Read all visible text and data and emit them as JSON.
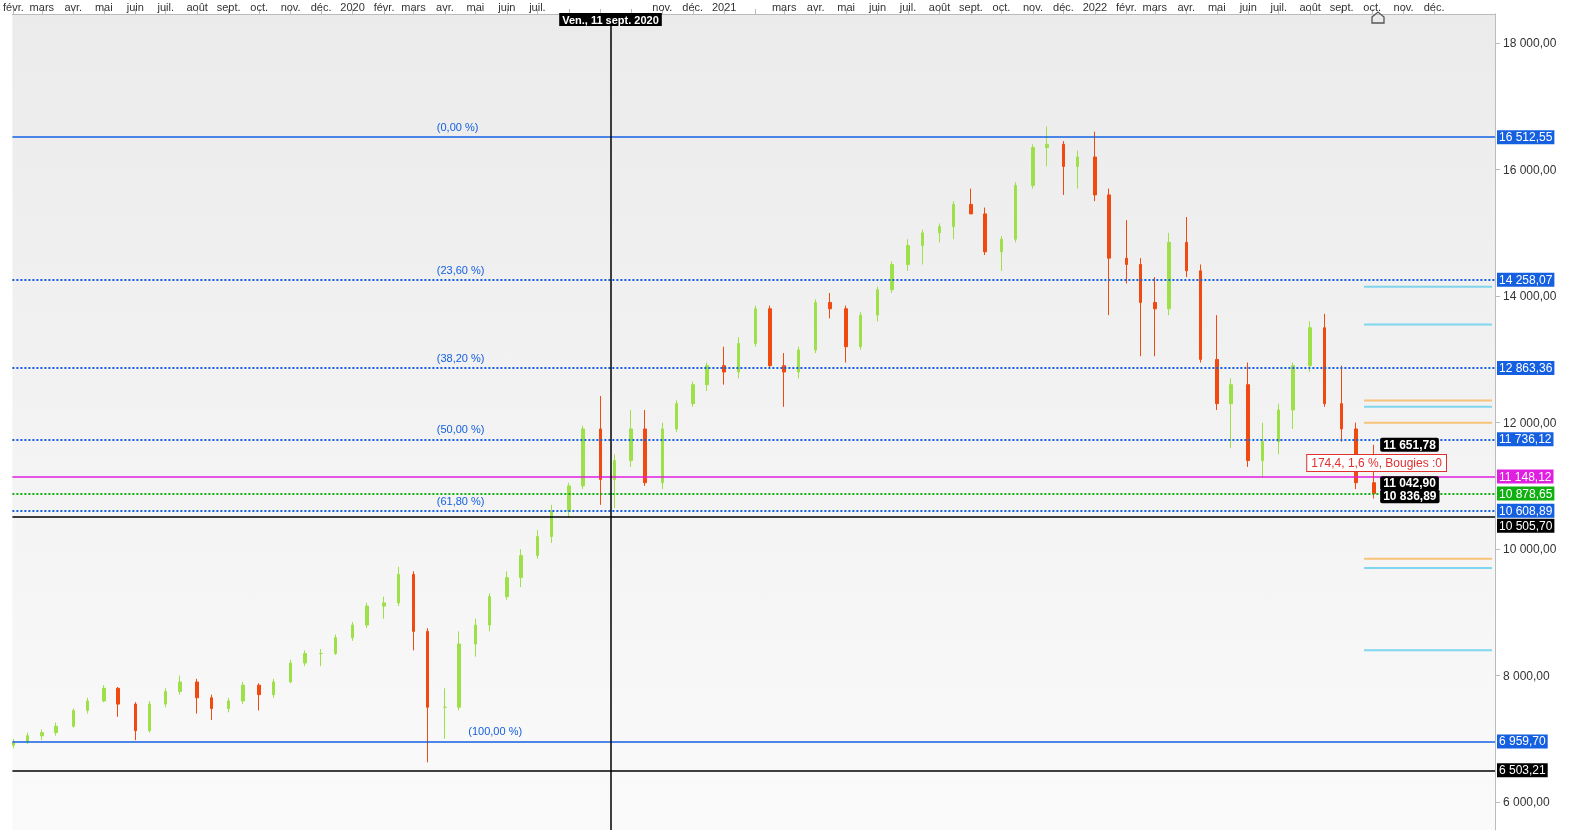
{
  "chart_data": {
    "type": "candlestick",
    "x": [
      "2019-02-01",
      "2019-02-15",
      "2019-03-01",
      "2019-03-15",
      "2019-04-01",
      "2019-04-15",
      "2019-05-01",
      "2019-05-15",
      "2019-06-01",
      "2019-06-15",
      "2019-07-01",
      "2019-07-15",
      "2019-08-01",
      "2019-08-15",
      "2019-09-01",
      "2019-09-15",
      "2019-10-01",
      "2019-10-15",
      "2019-11-01",
      "2019-11-15",
      "2019-12-01",
      "2019-12-15",
      "2020-01-01",
      "2020-01-15",
      "2020-02-01",
      "2020-02-15",
      "2020-03-01",
      "2020-03-15",
      "2020-04-01",
      "2020-04-15",
      "2020-05-01",
      "2020-05-15",
      "2020-06-01",
      "2020-06-15",
      "2020-07-01",
      "2020-07-15",
      "2020-08-01",
      "2020-08-15",
      "2020-09-01",
      "2020-09-15",
      "2020-10-01",
      "2020-10-15",
      "2020-11-01",
      "2020-11-15",
      "2020-12-01",
      "2020-12-15",
      "2021-01-01",
      "2021-01-15",
      "2021-02-01",
      "2021-02-15",
      "2021-03-01",
      "2021-03-15",
      "2021-04-01",
      "2021-04-15",
      "2021-05-01",
      "2021-05-15",
      "2021-06-01",
      "2021-06-15",
      "2021-07-01",
      "2021-07-15",
      "2021-08-01",
      "2021-08-15",
      "2021-09-01",
      "2021-09-15",
      "2021-10-01",
      "2021-10-15",
      "2021-11-01",
      "2021-11-15",
      "2021-12-01",
      "2021-12-15",
      "2022-01-01",
      "2022-01-15",
      "2022-02-01",
      "2022-02-15",
      "2022-03-01",
      "2022-03-15",
      "2022-04-01",
      "2022-04-15",
      "2022-05-01",
      "2022-05-15",
      "2022-06-01",
      "2022-06-15",
      "2022-07-01",
      "2022-07-15",
      "2022-08-01",
      "2022-08-15",
      "2022-09-01",
      "2022-09-15",
      "2022-10-03"
    ],
    "ohlc": [
      [
        6900,
        7000,
        6850,
        6950
      ],
      [
        6950,
        7100,
        6920,
        7050
      ],
      [
        7050,
        7150,
        6980,
        7100
      ],
      [
        7100,
        7260,
        7050,
        7200
      ],
      [
        7200,
        7480,
        7180,
        7450
      ],
      [
        7450,
        7650,
        7400,
        7600
      ],
      [
        7600,
        7850,
        7580,
        7800
      ],
      [
        7800,
        7820,
        7350,
        7550
      ],
      [
        7550,
        7580,
        6980,
        7130
      ],
      [
        7130,
        7600,
        7100,
        7550
      ],
      [
        7550,
        7800,
        7500,
        7750
      ],
      [
        7750,
        8000,
        7700,
        7900
      ],
      [
        7900,
        7950,
        7400,
        7650
      ],
      [
        7650,
        7700,
        7300,
        7480
      ],
      [
        7480,
        7650,
        7420,
        7600
      ],
      [
        7600,
        7900,
        7550,
        7850
      ],
      [
        7850,
        7880,
        7450,
        7700
      ],
      [
        7700,
        7950,
        7650,
        7900
      ],
      [
        7900,
        8250,
        7880,
        8200
      ],
      [
        8200,
        8400,
        8150,
        8350
      ],
      [
        8350,
        8420,
        8150,
        8350
      ],
      [
        8350,
        8650,
        8330,
        8600
      ],
      [
        8600,
        8850,
        8550,
        8800
      ],
      [
        8800,
        9150,
        8750,
        9100
      ],
      [
        9100,
        9250,
        8900,
        9150
      ],
      [
        9150,
        9720,
        9100,
        9600
      ],
      [
        9600,
        9650,
        8400,
        8700
      ],
      [
        8700,
        8750,
        6630,
        7500
      ],
      [
        7500,
        7800,
        7000,
        7500
      ],
      [
        7500,
        8700,
        7450,
        8500
      ],
      [
        8500,
        8900,
        8300,
        8800
      ],
      [
        8800,
        9300,
        8700,
        9250
      ],
      [
        9250,
        9650,
        9200,
        9550
      ],
      [
        9550,
        10000,
        9400,
        9900
      ],
      [
        9900,
        10300,
        9850,
        10200
      ],
      [
        10200,
        10700,
        10100,
        10600
      ],
      [
        10600,
        11050,
        10500,
        11000
      ],
      [
        11000,
        11950,
        10950,
        11900
      ],
      [
        11900,
        12420,
        10700,
        11100
      ],
      [
        11100,
        11500,
        10650,
        11400
      ],
      [
        11400,
        12200,
        11300,
        11900
      ],
      [
        11900,
        12200,
        11000,
        11050
      ],
      [
        11050,
        12000,
        10950,
        11900
      ],
      [
        11900,
        12350,
        11850,
        12300
      ],
      [
        12300,
        12650,
        12250,
        12600
      ],
      [
        12600,
        12950,
        12500,
        12900
      ],
      [
        12900,
        13200,
        12600,
        12800
      ],
      [
        12800,
        13350,
        12700,
        13250
      ],
      [
        13250,
        13850,
        13200,
        13800
      ],
      [
        13800,
        13850,
        12850,
        12900
      ],
      [
        12900,
        13100,
        12250,
        12800
      ],
      [
        12800,
        13200,
        12700,
        13150
      ],
      [
        13150,
        13950,
        13100,
        13900
      ],
      [
        13900,
        14050,
        13650,
        13800
      ],
      [
        13800,
        13850,
        12950,
        13200
      ],
      [
        13200,
        13750,
        13150,
        13700
      ],
      [
        13700,
        14150,
        13600,
        14100
      ],
      [
        14100,
        14550,
        14050,
        14500
      ],
      [
        14500,
        14900,
        14400,
        14800
      ],
      [
        14800,
        15050,
        14500,
        15000
      ],
      [
        15000,
        15150,
        14850,
        15100
      ],
      [
        15100,
        15500,
        14900,
        15450
      ],
      [
        15450,
        15700,
        15300,
        15300
      ],
      [
        15300,
        15400,
        14650,
        14700
      ],
      [
        14700,
        14950,
        14400,
        14900
      ],
      [
        14900,
        15800,
        14850,
        15750
      ],
      [
        15750,
        16400,
        15700,
        16350
      ],
      [
        16350,
        16680,
        16050,
        16400
      ],
      [
        16400,
        16450,
        15600,
        16050
      ],
      [
        16050,
        16300,
        15700,
        16200
      ],
      [
        16200,
        16600,
        15500,
        15600
      ],
      [
        15600,
        15700,
        13700,
        14600
      ],
      [
        14600,
        15200,
        14200,
        14500
      ],
      [
        14500,
        14600,
        13050,
        13900
      ],
      [
        13900,
        14300,
        13050,
        13800
      ],
      [
        13800,
        15000,
        13700,
        14850
      ],
      [
        14850,
        15250,
        14300,
        14400
      ],
      [
        14400,
        14500,
        12950,
        13000
      ],
      [
        13000,
        13700,
        12200,
        12300
      ],
      [
        12300,
        12700,
        11600,
        12600
      ],
      [
        12600,
        12950,
        11300,
        11400
      ],
      [
        11400,
        12000,
        11130,
        11700
      ],
      [
        11700,
        12300,
        11500,
        12200
      ],
      [
        12200,
        12950,
        11900,
        12900
      ],
      [
        12900,
        13600,
        12800,
        13500
      ],
      [
        13500,
        13720,
        12250,
        12300
      ],
      [
        12300,
        12900,
        11700,
        11900
      ],
      [
        11900,
        12000,
        10950,
        11050
      ],
      [
        11050,
        11650,
        10800,
        10878.65
      ]
    ],
    "colors": [
      "#9ee04a",
      "#9ee04a",
      "#9ee04a",
      "#9ee04a",
      "#9ee04a",
      "#9ee04a",
      "#9ee04a",
      "#f04a10",
      "#f04a10",
      "#9ee04a",
      "#9ee04a",
      "#9ee04a",
      "#f04a10",
      "#f04a10",
      "#9ee04a",
      "#9ee04a",
      "#f04a10",
      "#9ee04a",
      "#9ee04a",
      "#9ee04a",
      "#9ee04a",
      "#9ee04a",
      "#9ee04a",
      "#9ee04a",
      "#9ee04a",
      "#9ee04a",
      "#f04a10",
      "#f04a10",
      "#9ee04a",
      "#9ee04a",
      "#9ee04a",
      "#9ee04a",
      "#9ee04a",
      "#9ee04a",
      "#9ee04a",
      "#9ee04a",
      "#9ee04a",
      "#9ee04a",
      "#f04a10",
      "#9ee04a",
      "#9ee04a",
      "#f04a10",
      "#9ee04a",
      "#9ee04a",
      "#9ee04a",
      "#9ee04a",
      "#f04a10",
      "#9ee04a",
      "#9ee04a",
      "#f04a10",
      "#f04a10",
      "#9ee04a",
      "#9ee04a",
      "#f04a10",
      "#f04a10",
      "#9ee04a",
      "#9ee04a",
      "#9ee04a",
      "#9ee04a",
      "#9ee04a",
      "#9ee04a",
      "#9ee04a",
      "#f04a10",
      "#f04a10",
      "#9ee04a",
      "#9ee04a",
      "#9ee04a",
      "#9ee04a",
      "#f04a10",
      "#9ee04a",
      "#f04a10",
      "#f04a10",
      "#f04a10",
      "#f04a10",
      "#f04a10",
      "#9ee04a",
      "#f04a10",
      "#f04a10",
      "#f04a10",
      "#9ee04a",
      "#f04a10",
      "#9ee04a",
      "#9ee04a",
      "#9ee04a",
      "#9ee04a",
      "#f04a10",
      "#f04a10",
      "#f04a10",
      "#f04a10"
    ],
    "series": [
      {
        "type": "line",
        "color": "#f7c27a",
        "x": [
          "2022-09-23",
          "2023-01-27"
        ],
        "values": [
          12350,
          12350
        ]
      },
      {
        "type": "line",
        "color": "#f7c27a",
        "x": [
          "2022-09-23",
          "2023-01-27"
        ],
        "values": [
          12000,
          12000
        ]
      },
      {
        "type": "line",
        "color": "#f7c27a",
        "x": [
          "2022-09-23",
          "2023-01-27"
        ],
        "values": [
          9850,
          9850
        ]
      },
      {
        "type": "line",
        "color": "#7fd6ee",
        "x": [
          "2022-09-23",
          "2023-01-27"
        ],
        "values": [
          14150,
          14150
        ]
      },
      {
        "type": "line",
        "color": "#7fd6ee",
        "x": [
          "2022-09-23",
          "2023-01-27"
        ],
        "values": [
          13550,
          13550
        ]
      },
      {
        "type": "line",
        "color": "#7fd6ee",
        "x": [
          "2022-09-23",
          "2023-01-27"
        ],
        "values": [
          12250,
          12250
        ]
      },
      {
        "type": "line",
        "color": "#7fd6ee",
        "x": [
          "2022-09-23",
          "2023-01-27"
        ],
        "values": [
          9700,
          9700
        ]
      },
      {
        "type": "line",
        "color": "#7fd6ee",
        "x": [
          "2022-09-23",
          "2023-01-27"
        ],
        "values": [
          8400,
          8400
        ]
      }
    ],
    "xlim": [
      "2019-01-31",
      "2023-01-30"
    ],
    "xticks": [
      {
        "value": "2019-02",
        "label": "févr."
      },
      {
        "value": "2019-03",
        "label": "mars"
      },
      {
        "value": "2019-04",
        "label": "avr."
      },
      {
        "value": "2019-05",
        "label": "mai"
      },
      {
        "value": "2019-06",
        "label": "juin"
      },
      {
        "value": "2019-07",
        "label": "juil."
      },
      {
        "value": "2019-08",
        "label": "août"
      },
      {
        "value": "2019-09",
        "label": "sept."
      },
      {
        "value": "2019-10",
        "label": "oct."
      },
      {
        "value": "2019-11",
        "label": "nov."
      },
      {
        "value": "2019-12",
        "label": "déc."
      },
      {
        "value": "2020-01",
        "label": "2020"
      },
      {
        "value": "2020-02",
        "label": "févr."
      },
      {
        "value": "2020-03",
        "label": "mars"
      },
      {
        "value": "2020-04",
        "label": "avr."
      },
      {
        "value": "2020-05",
        "label": "mai"
      },
      {
        "value": "2020-06",
        "label": "juin"
      },
      {
        "value": "2020-07",
        "label": "juil."
      },
      {
        "value": "2020-08",
        "label": null
      },
      {
        "value": "2020-09",
        "label": null
      },
      {
        "value": "2020-10",
        "label": null
      },
      {
        "value": "2020-11",
        "label": "nov."
      },
      {
        "value": "2020-12",
        "label": "déc."
      },
      {
        "value": "2021-01",
        "label": "2021"
      },
      {
        "value": "2021-02",
        "label": null
      },
      {
        "value": "2021-03",
        "label": "mars"
      },
      {
        "value": "2021-04",
        "label": "avr."
      },
      {
        "value": "2021-05",
        "label": "mai"
      },
      {
        "value": "2021-06",
        "label": "juin"
      },
      {
        "value": "2021-07",
        "label": "juil."
      },
      {
        "value": "2021-08",
        "label": "août"
      },
      {
        "value": "2021-09",
        "label": "sept."
      },
      {
        "value": "2021-10",
        "label": "oct."
      },
      {
        "value": "2021-11",
        "label": "nov."
      },
      {
        "value": "2021-12",
        "label": "déc."
      },
      {
        "value": "2022-01",
        "label": "2022"
      },
      {
        "value": "2022-02",
        "label": "févr."
      },
      {
        "value": "2022-03",
        "label": "mars"
      },
      {
        "value": "2022-04",
        "label": "avr."
      },
      {
        "value": "2022-05",
        "label": "mai"
      },
      {
        "value": "2022-06",
        "label": "juin"
      },
      {
        "value": "2022-07",
        "label": "juil."
      },
      {
        "value": "2022-08",
        "label": "août"
      },
      {
        "value": "2022-09",
        "label": "sept."
      },
      {
        "value": "2022-10",
        "label": "oct."
      },
      {
        "value": "2022-11",
        "label": "nov."
      },
      {
        "value": "2022-12",
        "label": "déc."
      }
    ],
    "ylim": [
      5560,
      18460
    ],
    "yticks": [
      {
        "value": 6000,
        "label": "6 000,00"
      },
      {
        "value": 8000,
        "label": "8 000,00"
      },
      {
        "value": 10000,
        "label": "10 000,00"
      },
      {
        "value": 12000,
        "label": "12 000,00"
      },
      {
        "value": 14000,
        "label": "14 000,00"
      },
      {
        "value": 16000,
        "label": "16 000,00"
      },
      {
        "value": 18000,
        "label": "18 000,00"
      }
    ],
    "ref_lines": [
      {
        "axis": "y",
        "value": 16512.55,
        "label": "16 512,55",
        "color": "#1560e0",
        "line_style": "solid"
      },
      {
        "axis": "y",
        "value": 14258.07,
        "label": "14 258,07",
        "color": "#1560e0",
        "line_style": "dotted"
      },
      {
        "axis": "y",
        "value": 12863.36,
        "label": "12 863,36",
        "color": "#1560e0",
        "line_style": "dotted"
      },
      {
        "axis": "y",
        "value": 11736.12,
        "label": "11 736,12",
        "color": "#1560e0",
        "line_style": "dotted"
      },
      {
        "axis": "y",
        "value": 10608.89,
        "label": "10 608,89",
        "color": "#1560e0",
        "line_style": "dotted"
      },
      {
        "axis": "y",
        "value": 6959.7,
        "label": "6 959,70",
        "color": "#1560e0",
        "line_style": "solid"
      },
      {
        "axis": "y",
        "value": 11148.12,
        "label": "11 148,12",
        "color": "#e020e0",
        "line_style": "solid"
      },
      {
        "axis": "y",
        "value": 10878.65,
        "label": "10 878,65",
        "color": "#10b010",
        "line_style": "dotted"
      },
      {
        "axis": "y",
        "value": 10505.7,
        "label": "10 505,70",
        "color": "#000000",
        "line_style": "solid"
      },
      {
        "axis": "y",
        "value": 6503.21,
        "label": "6 503,21",
        "color": "#000000",
        "line_style": "solid"
      },
      {
        "axis": "x",
        "value": "2020-09-11",
        "label": "Ven., 11 sept. 2020",
        "color": "#000000",
        "line_style": "solid"
      }
    ],
    "annotations": [
      {
        "text": "(0,00 %)",
        "x": "2020-03-20",
        "y": 16512.55
      },
      {
        "text": "(23,60 %)",
        "x": "2020-03-20",
        "y": 14258.07
      },
      {
        "text": "(38,20 %)",
        "x": "2020-03-20",
        "y": 12863.36
      },
      {
        "text": "(50,00 %)",
        "x": "2020-03-20",
        "y": 11736.12
      },
      {
        "text": "(61,80 %)",
        "x": "2020-03-20",
        "y": 10608.89
      },
      {
        "text": "(100,00 %)",
        "x": "2020-04-20",
        "y": 6959.7
      },
      {
        "text": "11 651,78",
        "x": "2022-10-03",
        "y": 11651.78
      },
      {
        "text": "11 042,90",
        "x": "2022-10-03",
        "y": 11042.9
      },
      {
        "text": "10 836,89",
        "x": "2022-10-03",
        "y": 10836.89
      },
      "174,4, 1,6 %, Bougies :0"
    ],
    "grid": false
  }
}
